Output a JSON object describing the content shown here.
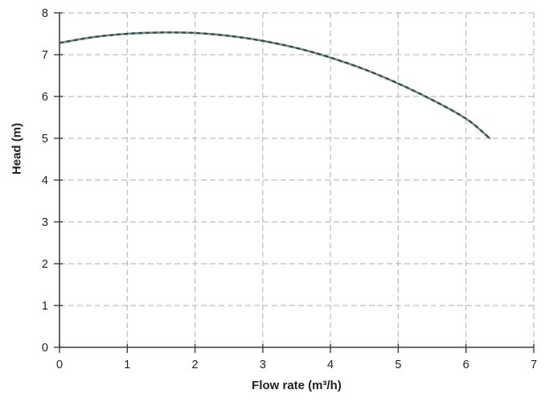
{
  "chart_data": {
    "type": "line",
    "title": "",
    "xlabel": "Flow rate (m³/h)",
    "ylabel": "Head (m)",
    "xlim": [
      0,
      7
    ],
    "ylim": [
      0,
      8
    ],
    "x_ticks": [
      0,
      1,
      2,
      3,
      4,
      5,
      6,
      7
    ],
    "y_ticks": [
      0,
      1,
      2,
      3,
      4,
      5,
      6,
      7,
      8
    ],
    "grid": "dashed-both-directions",
    "legend": "none",
    "series": [
      {
        "name": "pump-head-curve",
        "style": "solid teal line with dark dashed overlay",
        "x": [
          0,
          0.5,
          1,
          1.5,
          2,
          2.5,
          3,
          3.5,
          4,
          4.5,
          5,
          5.5,
          6,
          6.35
        ],
        "y": [
          7.28,
          7.42,
          7.5,
          7.53,
          7.52,
          7.45,
          7.33,
          7.16,
          6.93,
          6.65,
          6.31,
          5.92,
          5.47,
          5.0
        ]
      }
    ],
    "colors": {
      "curve_base": "#6b8e8c",
      "curve_dash": "#3b4749",
      "grid": "#bdbdbd",
      "axis": "#3d3d3d",
      "text": "#1f1f1f",
      "background": "#ffffff"
    }
  }
}
